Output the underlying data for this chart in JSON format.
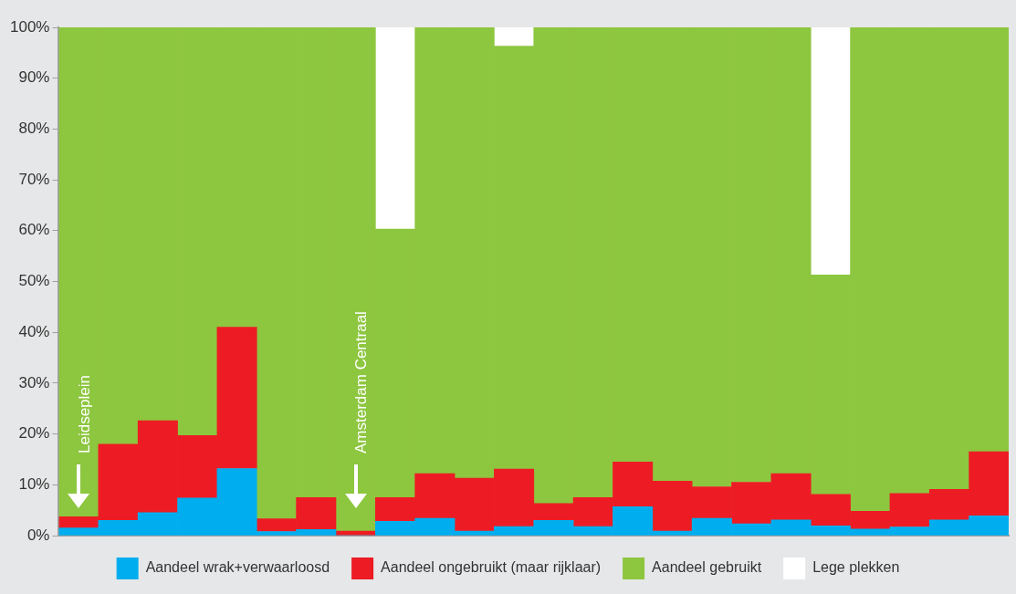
{
  "chart_data": {
    "type": "bar",
    "stacked": true,
    "categories": [
      null,
      null,
      null,
      null,
      null,
      null,
      null,
      null,
      null,
      null,
      null,
      null,
      null,
      null,
      null,
      null,
      null,
      null,
      null,
      null,
      null,
      null,
      null,
      null
    ],
    "series": [
      {
        "name": "Aandeel wrak+verwaarloosd",
        "color": "#00aeef",
        "values": [
          1.5,
          3.0,
          4.5,
          7.4,
          13.2,
          0.8,
          1.2,
          0,
          2.8,
          3.4,
          0.9,
          1.8,
          3.0,
          1.8,
          5.7,
          0.9,
          3.4,
          2.3,
          3.1,
          1.9,
          1.3,
          1.7,
          3.1,
          3.9
        ]
      },
      {
        "name": "Aandeel ongebruikt (maar rijklaar)",
        "color": "#ed1c24",
        "values": [
          2.2,
          15.0,
          18.1,
          12.3,
          27.8,
          2.5,
          6.3,
          0.9,
          4.7,
          8.8,
          10.4,
          11.3,
          3.3,
          5.7,
          8.8,
          9.8,
          6.2,
          8.2,
          9.1,
          6.2,
          3.5,
          6.6,
          6.0,
          12.6
        ]
      },
      {
        "name": "Aandeel gebruikt",
        "color": "#8dc63f",
        "values": [
          96.3,
          82.0,
          77.4,
          80.3,
          59.0,
          96.7,
          92.5,
          99.1,
          52.8,
          87.8,
          88.7,
          83.2,
          93.7,
          92.5,
          85.5,
          89.3,
          90.4,
          89.5,
          87.8,
          43.2,
          95.2,
          91.7,
          90.9,
          83.5
        ]
      },
      {
        "name": "Lege plekken",
        "color": "#ffffff",
        "values": [
          0,
          0,
          0,
          0,
          0,
          0,
          0,
          0,
          39.7,
          0,
          0,
          3.7,
          0,
          0,
          0,
          0,
          0,
          0,
          0,
          48.7,
          0,
          0,
          0,
          0
        ]
      }
    ],
    "ylim": [
      0,
      100
    ],
    "yticks": [
      {
        "value": 0,
        "label": "0%"
      },
      {
        "value": 10,
        "label": "10%"
      },
      {
        "value": 20,
        "label": "20%"
      },
      {
        "value": 30,
        "label": "30%"
      },
      {
        "value": 40,
        "label": "40%"
      },
      {
        "value": 50,
        "label": "50%"
      },
      {
        "value": 60,
        "label": "60%"
      },
      {
        "value": 70,
        "label": "70%"
      },
      {
        "value": 80,
        "label": "80%"
      },
      {
        "value": 90,
        "label": "90%"
      },
      {
        "value": 100,
        "label": "100%"
      }
    ],
    "legend": "bottom",
    "annotations": [
      "Leidseplein",
      "Amsterdam Centraal"
    ]
  }
}
